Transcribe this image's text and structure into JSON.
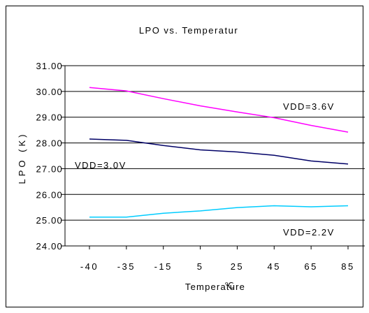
{
  "chart_data": {
    "type": "line",
    "title": "LPO vs. Temperatur",
    "xlabel": "Temperature",
    "xlabel_unit_glyph": "℃",
    "ylabel": "LPO (K)",
    "categories": [
      "-40",
      "-35",
      "-15",
      "5",
      "25",
      "45",
      "65",
      "85"
    ],
    "ylim": [
      24.0,
      31.0
    ],
    "yticks": [
      "24.00",
      "25.00",
      "26.00",
      "27.00",
      "28.00",
      "29.00",
      "30.00",
      "31.00"
    ],
    "grid": "horizontal",
    "legend": "inline labels",
    "series": [
      {
        "name": "VDD=3.6V",
        "color": "#ff00ff",
        "values": [
          30.15,
          30.02,
          29.72,
          29.44,
          29.2,
          28.98,
          28.68,
          28.42
        ]
      },
      {
        "name": "VDD=3.0V",
        "color": "#000066",
        "values": [
          28.15,
          28.1,
          27.9,
          27.73,
          27.65,
          27.52,
          27.3,
          27.18
        ]
      },
      {
        "name": "VDD=2.2V",
        "color": "#00ccff",
        "values": [
          25.12,
          25.12,
          25.27,
          25.36,
          25.49,
          25.56,
          25.52,
          25.56
        ]
      }
    ]
  }
}
